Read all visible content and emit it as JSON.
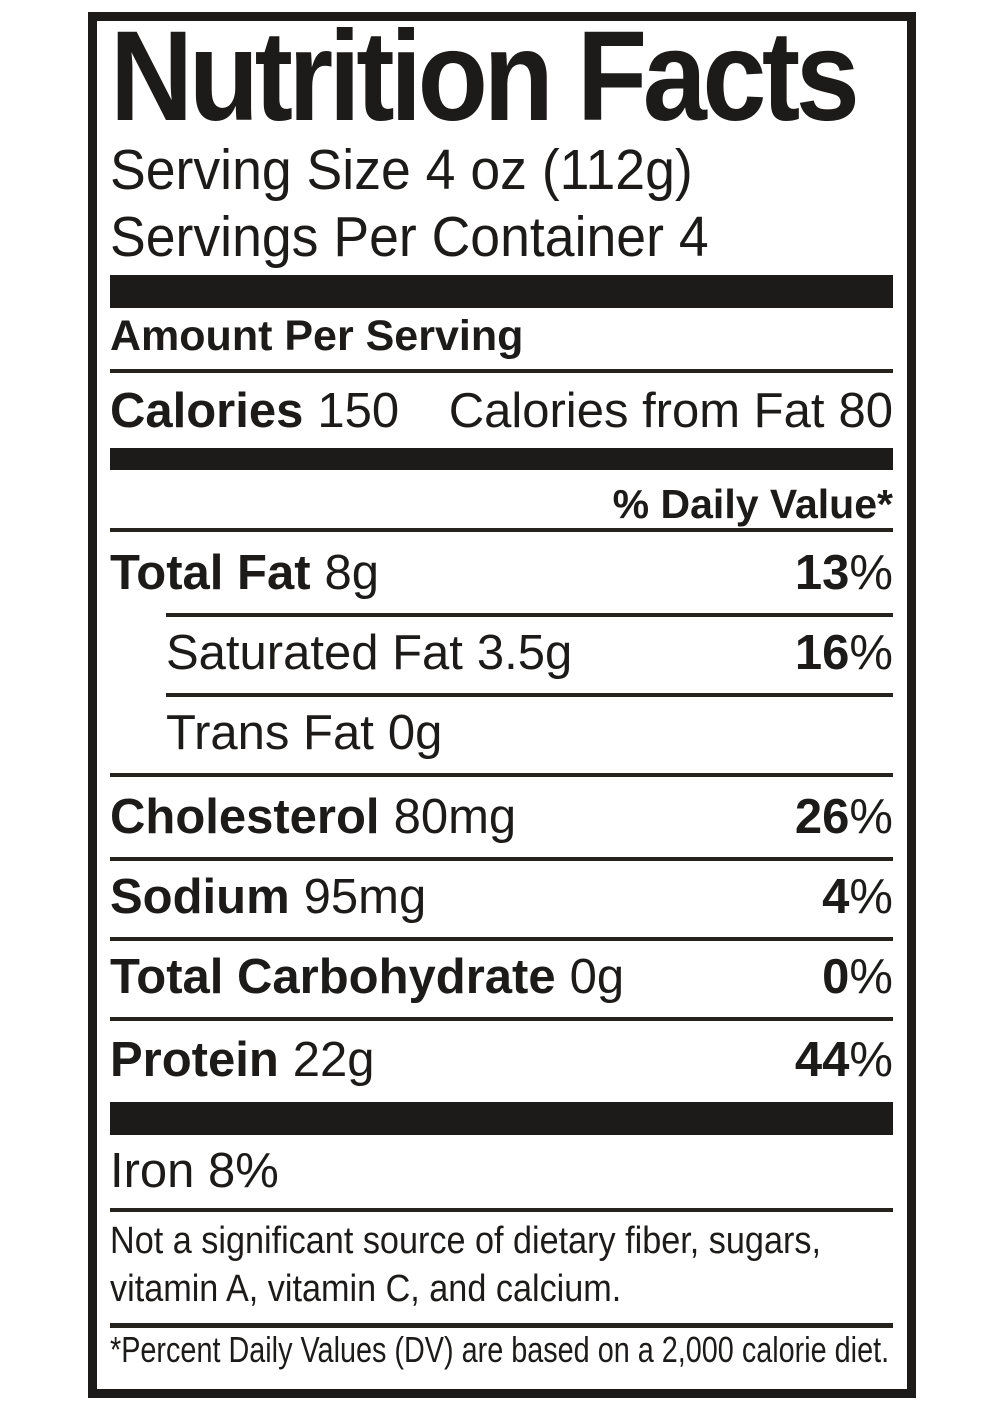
{
  "colors": {
    "ink": "#1d1b1a",
    "paper": "#ffffff"
  },
  "label": {
    "title": "Nutrition Facts",
    "serving_size": "Serving Size 4 oz (112g)",
    "servings_per_container": "Servings Per Container 4",
    "amount_per_serving": "Amount Per Serving",
    "calories": {
      "label": "Calories",
      "value": "150",
      "from_fat_label": "Calories from Fat",
      "from_fat_value": "80"
    },
    "daily_value_header": "% Daily Value*",
    "percent_sign": "%",
    "nutrients": [
      {
        "name": "Total Fat",
        "amount": "8g",
        "daily_value": "13"
      },
      {
        "name": "Saturated Fat",
        "amount": "3.5g",
        "daily_value": "16"
      },
      {
        "name": "Trans Fat",
        "amount": "0g",
        "daily_value": ""
      },
      {
        "name": "Cholesterol",
        "amount": "80mg",
        "daily_value": "26"
      },
      {
        "name": "Sodium",
        "amount": "95mg",
        "daily_value": "4"
      },
      {
        "name": "Total Carbohydrate",
        "amount": "0g",
        "daily_value": "0"
      },
      {
        "name": "Protein",
        "amount": "22g",
        "daily_value": "44"
      }
    ],
    "iron": "Iron 8%",
    "note_line1": "Not a significant source of dietary fiber, sugars,",
    "note_line2": "vitamin A, vitamin C, and calcium.",
    "footnote": "*Percent Daily Values (DV) are based on a 2,000 calorie diet."
  }
}
